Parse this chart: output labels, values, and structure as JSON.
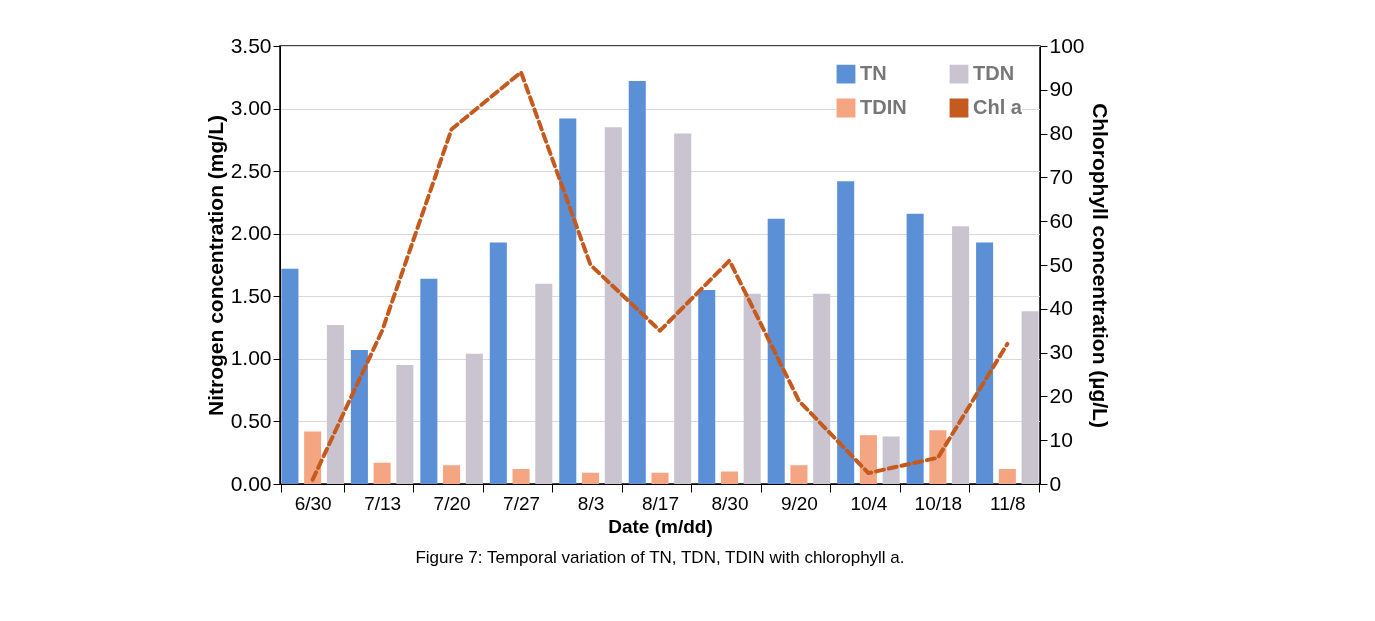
{
  "chart_data": {
    "type": "bar",
    "categories": [
      "6/30",
      "7/13",
      "7/20",
      "7/27",
      "8/3",
      "8/17",
      "8/30",
      "9/20",
      "10/4",
      "10/18",
      "11/8"
    ],
    "series": [
      {
        "name": "TN",
        "color": "#5b8fd6",
        "values": [
          1.72,
          1.07,
          1.64,
          1.93,
          2.92,
          3.22,
          1.55,
          2.12,
          2.42,
          2.16,
          1.93
        ]
      },
      {
        "name": "TDIN",
        "color": "#f4a582",
        "values": [
          0.42,
          0.17,
          0.15,
          0.12,
          0.09,
          0.09,
          0.1,
          0.15,
          0.39,
          0.43,
          0.12
        ]
      },
      {
        "name": "TDN",
        "color": "#c9c4cf",
        "values": [
          1.27,
          0.95,
          1.04,
          1.6,
          2.85,
          2.8,
          1.52,
          1.52,
          0.38,
          2.06,
          1.38
        ]
      },
      {
        "name": "Chl a",
        "type": "line",
        "axis": "y2",
        "color": "#c55a1f",
        "line_style": "dashed",
        "values": [
          1,
          35,
          81,
          94,
          50,
          35,
          51,
          19,
          2.5,
          6,
          32
        ]
      }
    ],
    "xlabel": "Date (m/dd)",
    "ylabel": "Nitrogen concentration (mg/L)",
    "y2label": "Chlorophyll concentration (µg/L)",
    "ylim": [
      0,
      3.5
    ],
    "yticks": [
      {
        "value": 0,
        "label": "0.00"
      },
      {
        "value": 0.5,
        "label": "0.50"
      },
      {
        "value": 1,
        "label": "1.00"
      },
      {
        "value": 1.5,
        "label": "1.50"
      },
      {
        "value": 2,
        "label": "2.00"
      },
      {
        "value": 2.5,
        "label": "2.50"
      },
      {
        "value": 3,
        "label": "3.00"
      },
      {
        "value": 3.5,
        "label": "3.50"
      }
    ],
    "y2lim": [
      0,
      100
    ],
    "y2ticks": [
      0,
      10,
      20,
      30,
      40,
      50,
      60,
      70,
      80,
      90,
      100
    ],
    "grid": "y",
    "legend": "top right",
    "annotations": [
      "Figure 7: Temporal variation of TN, TDN, TDIN with chlorophyll a."
    ]
  }
}
